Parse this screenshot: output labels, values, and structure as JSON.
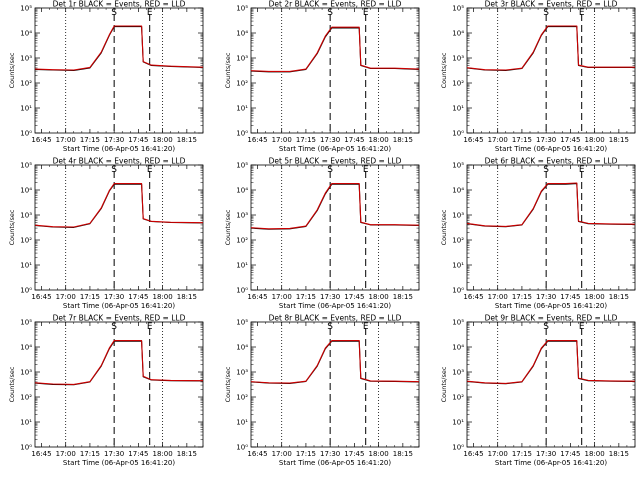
{
  "chart_data": {
    "type": "line",
    "panel_count": 9,
    "y_scale": "log",
    "ylim": [
      1,
      100000
    ],
    "y_tick_labels": [
      "10⁰",
      "10¹",
      "10²",
      "10³",
      "10⁴",
      "10⁵"
    ],
    "y_tick_exponents": [
      0,
      1,
      2,
      3,
      4,
      5
    ],
    "x_tick_labels": [
      "16:45",
      "17:00",
      "17:15",
      "17:30",
      "17:45",
      "18:00",
      "18:15"
    ],
    "x_tick_minutes": [
      1005,
      1020,
      1035,
      1050,
      1065,
      1080,
      1095
    ],
    "xlim_minutes": [
      1001,
      1105
    ],
    "grid": false,
    "ylabel": "Counts/sec",
    "xlabel": "Start Time (06-Apr-05 16:41:20)",
    "colors": {
      "events": "#000000",
      "lld": "#cc0000",
      "axes": "#000000",
      "background": "#ffffff"
    },
    "markers": [
      {
        "label": "S",
        "minute": 1050,
        "style": "dashed"
      },
      {
        "label": "E",
        "minute": 1072,
        "style": "dashed"
      }
    ],
    "dotted_lines_minutes": [
      1020,
      1080
    ],
    "panels": [
      {
        "title": "Det 1r BLACK = Events, RED = LLD",
        "events_x": [
          1001,
          1012,
          1025,
          1035,
          1042,
          1047,
          1050,
          1060,
          1067,
          1068,
          1073,
          1085,
          1105
        ],
        "events_y": [
          350,
          330,
          320,
          400,
          1600,
          8000,
          18000,
          18000,
          18000,
          700,
          500,
          460,
          420
        ],
        "lld_x": [
          1001,
          1012,
          1025,
          1035,
          1042,
          1047,
          1050,
          1060,
          1067,
          1068,
          1073,
          1085,
          1105
        ],
        "lld_y": [
          360,
          340,
          330,
          420,
          1700,
          8500,
          19000,
          19000,
          19000,
          720,
          520,
          470,
          430
        ]
      },
      {
        "title": "Det 2r BLACK = Events, RED = LLD",
        "events_x": [
          1001,
          1012,
          1025,
          1035,
          1042,
          1047,
          1051,
          1062,
          1068,
          1069,
          1075,
          1090,
          1105
        ],
        "events_y": [
          300,
          280,
          280,
          350,
          1500,
          7000,
          16000,
          16000,
          16000,
          500,
          380,
          380,
          350
        ],
        "lld_x": [
          1001,
          1012,
          1025,
          1035,
          1042,
          1047,
          1051,
          1062,
          1068,
          1069,
          1075,
          1090,
          1105
        ],
        "lld_y": [
          310,
          290,
          290,
          360,
          1600,
          7500,
          17000,
          17000,
          17000,
          520,
          390,
          390,
          360
        ]
      },
      {
        "title": "Det 3r BLACK = Events, RED = LLD",
        "events_x": [
          1001,
          1012,
          1025,
          1035,
          1042,
          1047,
          1051,
          1062,
          1069,
          1070,
          1076,
          1090,
          1105
        ],
        "events_y": [
          400,
          330,
          320,
          380,
          1600,
          8000,
          18000,
          18000,
          18000,
          500,
          420,
          420,
          420
        ],
        "lld_x": [
          1001,
          1012,
          1025,
          1035,
          1042,
          1047,
          1051,
          1062,
          1069,
          1070,
          1076,
          1090,
          1105
        ],
        "lld_y": [
          410,
          340,
          330,
          390,
          1700,
          8500,
          19000,
          19000,
          19000,
          520,
          430,
          430,
          430
        ]
      },
      {
        "title": "Det 4r BLACK = Events, RED = LLD",
        "events_x": [
          1001,
          1012,
          1025,
          1035,
          1042,
          1047,
          1050,
          1060,
          1067,
          1068,
          1073,
          1085,
          1105
        ],
        "events_y": [
          380,
          330,
          320,
          450,
          1800,
          9000,
          17000,
          17000,
          17000,
          700,
          550,
          500,
          480
        ],
        "lld_x": [
          1001,
          1012,
          1025,
          1035,
          1042,
          1047,
          1050,
          1060,
          1067,
          1068,
          1073,
          1085,
          1105
        ],
        "lld_y": [
          390,
          340,
          330,
          460,
          1900,
          9500,
          18000,
          18000,
          18000,
          720,
          560,
          510,
          490
        ]
      },
      {
        "title": "Det 5r BLACK = Events, RED = LLD",
        "events_x": [
          1001,
          1012,
          1025,
          1035,
          1042,
          1047,
          1051,
          1062,
          1068,
          1069,
          1075,
          1090,
          1105
        ],
        "events_y": [
          300,
          270,
          280,
          350,
          1500,
          7000,
          17000,
          17000,
          17000,
          500,
          400,
          400,
          380
        ],
        "lld_x": [
          1001,
          1012,
          1025,
          1035,
          1042,
          1047,
          1051,
          1062,
          1068,
          1069,
          1075,
          1090,
          1105
        ],
        "lld_y": [
          310,
          280,
          290,
          360,
          1600,
          7500,
          18000,
          18000,
          18000,
          520,
          410,
          410,
          390
        ]
      },
      {
        "title": "Det 6r BLACK = Events, RED = LLD",
        "events_x": [
          1001,
          1012,
          1025,
          1035,
          1042,
          1047,
          1051,
          1062,
          1069,
          1070,
          1076,
          1090,
          1105
        ],
        "events_y": [
          450,
          360,
          340,
          400,
          1700,
          8500,
          17000,
          17000,
          18000,
          550,
          450,
          430,
          420
        ],
        "lld_x": [
          1001,
          1012,
          1025,
          1035,
          1042,
          1047,
          1051,
          1062,
          1069,
          1070,
          1076,
          1090,
          1105
        ],
        "lld_y": [
          460,
          370,
          350,
          410,
          1800,
          9000,
          18000,
          18000,
          19000,
          570,
          460,
          440,
          430
        ]
      },
      {
        "title": "Det 7r BLACK = Events, RED = LLD",
        "events_x": [
          1001,
          1012,
          1025,
          1035,
          1042,
          1047,
          1050,
          1060,
          1067,
          1068,
          1073,
          1085,
          1105
        ],
        "events_y": [
          360,
          320,
          310,
          400,
          1700,
          8500,
          17000,
          17000,
          17000,
          650,
          480,
          450,
          440
        ],
        "lld_x": [
          1001,
          1012,
          1025,
          1035,
          1042,
          1047,
          1050,
          1060,
          1067,
          1068,
          1073,
          1085,
          1105
        ],
        "lld_y": [
          370,
          330,
          320,
          410,
          1800,
          9000,
          18000,
          18000,
          18000,
          670,
          490,
          460,
          450
        ]
      },
      {
        "title": "Det 8r BLACK = Events, RED = LLD",
        "events_x": [
          1001,
          1012,
          1025,
          1035,
          1042,
          1047,
          1051,
          1062,
          1068,
          1069,
          1075,
          1090,
          1105
        ],
        "events_y": [
          400,
          360,
          350,
          420,
          1700,
          8500,
          17000,
          17000,
          17000,
          550,
          430,
          420,
          400
        ],
        "lld_x": [
          1001,
          1012,
          1025,
          1035,
          1042,
          1047,
          1051,
          1062,
          1068,
          1069,
          1075,
          1090,
          1105
        ],
        "lld_y": [
          410,
          370,
          360,
          430,
          1800,
          9000,
          18000,
          18000,
          18000,
          570,
          440,
          430,
          410
        ]
      },
      {
        "title": "Det 9r BLACK = Events, RED = LLD",
        "events_x": [
          1001,
          1012,
          1025,
          1035,
          1042,
          1047,
          1051,
          1062,
          1069,
          1070,
          1076,
          1090,
          1105
        ],
        "events_y": [
          420,
          360,
          340,
          400,
          1700,
          8500,
          17000,
          17000,
          17000,
          550,
          450,
          430,
          420
        ],
        "lld_x": [
          1001,
          1012,
          1025,
          1035,
          1042,
          1047,
          1051,
          1062,
          1069,
          1070,
          1076,
          1090,
          1105
        ],
        "lld_y": [
          430,
          370,
          350,
          410,
          1800,
          9000,
          18000,
          18000,
          18000,
          570,
          460,
          440,
          430
        ]
      }
    ]
  }
}
